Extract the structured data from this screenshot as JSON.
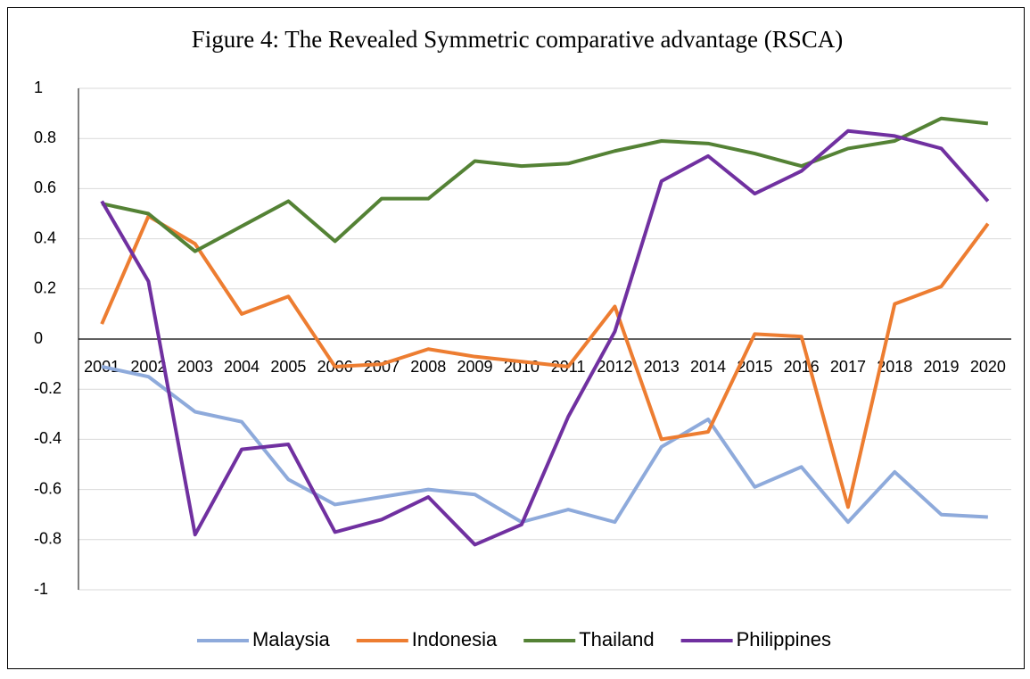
{
  "chart_data": {
    "type": "line",
    "title": "Figure 4: The Revealed Symmetric comparative advantage (RSCA)",
    "categories": [
      "2001",
      "2002",
      "2003",
      "2004",
      "2005",
      "2006",
      "2007",
      "2008",
      "2009",
      "2010",
      "2011",
      "2012",
      "2013",
      "2014",
      "2015",
      "2016",
      "2017",
      "2018",
      "2019",
      "2020"
    ],
    "series": [
      {
        "name": "Malaysia",
        "color": "#8eaadb",
        "values": [
          -0.11,
          -0.15,
          -0.29,
          -0.33,
          -0.56,
          -0.66,
          -0.63,
          -0.6,
          -0.62,
          -0.73,
          -0.68,
          -0.73,
          -0.43,
          -0.32,
          -0.59,
          -0.51,
          -0.73,
          -0.53,
          -0.7,
          -0.71
        ]
      },
      {
        "name": "Indonesia",
        "color": "#ed7d31",
        "values": [
          0.06,
          0.49,
          0.38,
          0.1,
          0.17,
          -0.11,
          -0.1,
          -0.04,
          -0.07,
          -0.09,
          -0.11,
          0.13,
          -0.4,
          -0.37,
          0.02,
          0.01,
          -0.67,
          0.14,
          0.21,
          0.46
        ]
      },
      {
        "name": "Thailand",
        "color": "#548235",
        "values": [
          0.54,
          0.5,
          0.35,
          0.45,
          0.55,
          0.39,
          0.56,
          0.56,
          0.71,
          0.69,
          0.7,
          0.75,
          0.79,
          0.78,
          0.74,
          0.69,
          0.76,
          0.79,
          0.88,
          0.86
        ]
      },
      {
        "name": "Philippines",
        "color": "#7030a0",
        "values": [
          0.55,
          0.23,
          -0.78,
          -0.44,
          -0.42,
          -0.77,
          -0.72,
          -0.63,
          -0.82,
          -0.74,
          -0.31,
          0.03,
          0.63,
          0.73,
          0.58,
          0.67,
          0.83,
          0.81,
          0.76,
          0.55
        ]
      }
    ],
    "ylim": [
      -1,
      1
    ],
    "yticks": [
      -1,
      -0.8,
      -0.6,
      -0.4,
      -0.2,
      0,
      0.2,
      0.4,
      0.6,
      0.8,
      1
    ],
    "grid": true,
    "legend": "bottom"
  }
}
